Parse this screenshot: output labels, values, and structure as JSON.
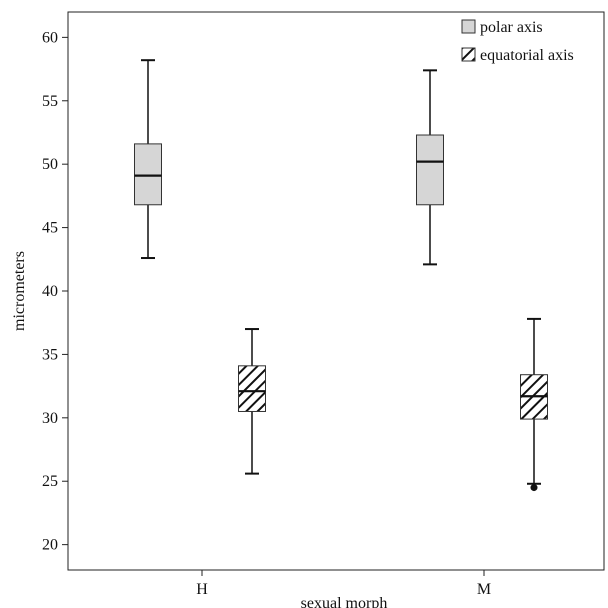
{
  "chart_data": {
    "type": "box",
    "title": "",
    "xlabel": "sexual morph",
    "ylabel": "micrometers",
    "ylim": [
      18,
      62
    ],
    "yticks": [
      20,
      25,
      30,
      35,
      40,
      45,
      50,
      55,
      60
    ],
    "categories": [
      "H",
      "M"
    ],
    "legend": {
      "position": "top-right"
    },
    "grid": false,
    "series": [
      {
        "name": "polar axis",
        "fill": "#d6d6d6",
        "pattern": "solid",
        "boxes": [
          {
            "category": "H",
            "whisker_low": 42.6,
            "q1": 46.8,
            "median": 49.1,
            "q3": 51.6,
            "whisker_high": 58.2,
            "outliers": []
          },
          {
            "category": "M",
            "whisker_low": 42.1,
            "q1": 46.8,
            "median": 50.2,
            "q3": 52.3,
            "whisker_high": 57.4,
            "outliers": []
          }
        ]
      },
      {
        "name": "equatorial axis",
        "fill": "#ffffff",
        "pattern": "diagonal-hatch",
        "boxes": [
          {
            "category": "H",
            "whisker_low": 25.6,
            "q1": 30.5,
            "median": 32.1,
            "q3": 34.1,
            "whisker_high": 37.0,
            "outliers": []
          },
          {
            "category": "M",
            "whisker_low": 24.8,
            "q1": 29.9,
            "median": 31.7,
            "q3": 33.4,
            "whisker_high": 37.8,
            "outliers": [
              24.5
            ]
          }
        ]
      }
    ]
  }
}
